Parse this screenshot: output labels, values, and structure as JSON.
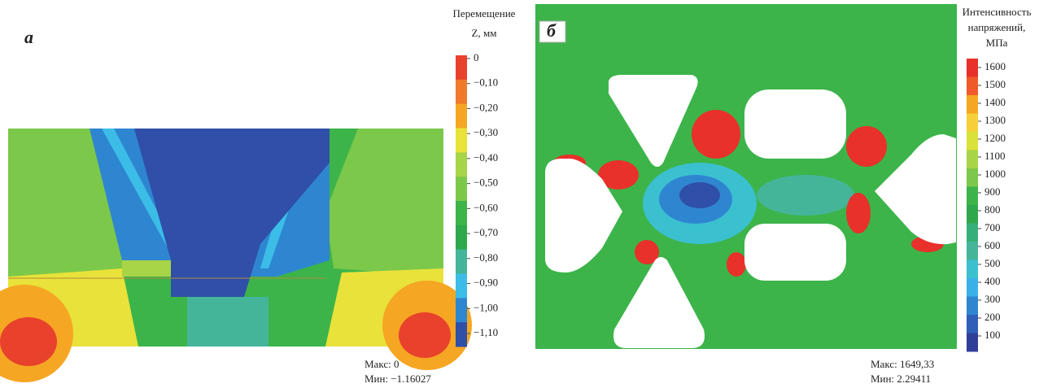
{
  "panel_a": {
    "label": "а",
    "legend_title": [
      "Перемещение",
      "Z, мм"
    ],
    "scale": {
      "labels": [
        "0",
        "−0,10",
        "−0,20",
        "−0,30",
        "−0,40",
        "−0,50",
        "−0,60",
        "−0,70",
        "−0,80",
        "−0,90",
        "−1,00",
        "−1,10"
      ],
      "colors": [
        "#e8412c",
        "#f07a2a",
        "#f5a623",
        "#e8e23a",
        "#a8d448",
        "#7cc84a",
        "#3cb44a",
        "#2fa84c",
        "#45b59a",
        "#3bbde8",
        "#2f86d0",
        "#2f4fa8"
      ]
    },
    "max": "Макс: 0",
    "min": "Мин: −1.16027"
  },
  "panel_b": {
    "label": "б",
    "legend_title": [
      "Интенсивность",
      "напряжений,",
      "МПа"
    ],
    "scale": {
      "labels": [
        "1600",
        "1500",
        "1400",
        "1300",
        "1200",
        "1100",
        "1000",
        "900",
        "800",
        "700",
        "600",
        "500",
        "400",
        "300",
        "200",
        "100"
      ],
      "colors": [
        "#e8312a",
        "#f05a2a",
        "#f5a623",
        "#f5d03a",
        "#d8e23a",
        "#a8d448",
        "#7cc84a",
        "#3cb44a",
        "#2fa84c",
        "#36b07a",
        "#45b59a",
        "#3bc0d0",
        "#3bb0e8",
        "#2f86d0",
        "#2f5fb8",
        "#2f3f98"
      ]
    },
    "max": "Макс: 1649,33",
    "min": "Мин: 2.29411"
  }
}
